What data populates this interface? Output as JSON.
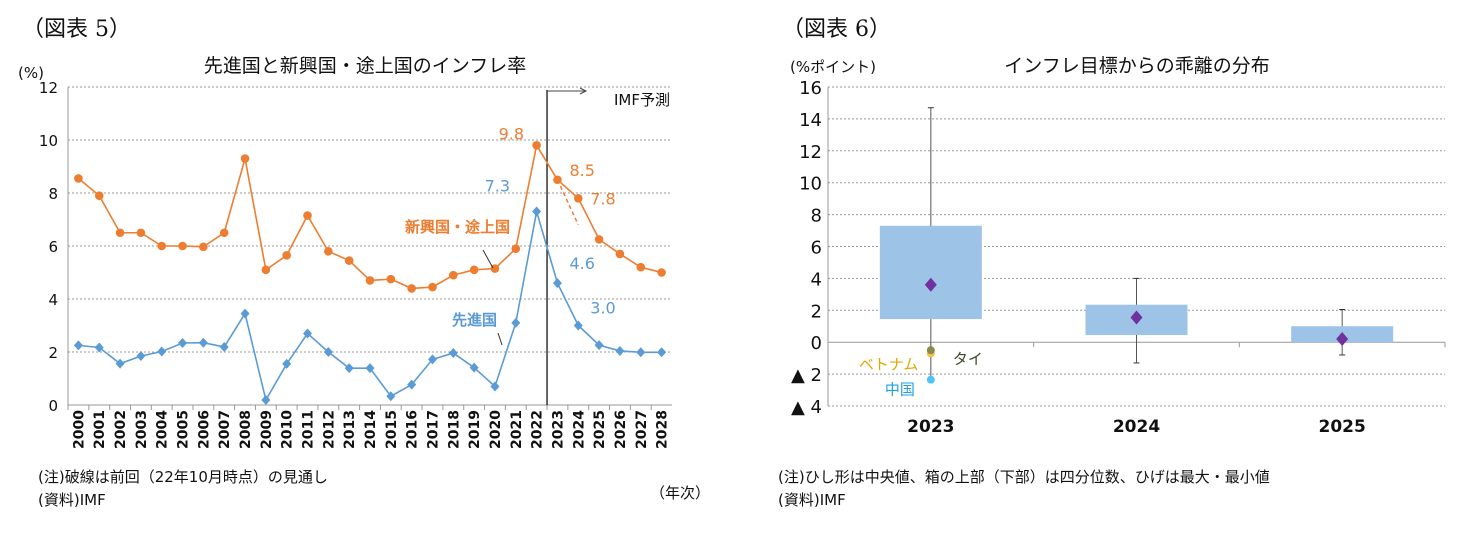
{
  "chart_data": [
    {
      "type": "line",
      "figure_label": "（図表 5）",
      "title": "先進国と新興国・途上国のインフレ率",
      "ylabel": "(%)",
      "xlabel": "（年次）",
      "ylim": [
        0,
        12
      ],
      "yticks": [
        "0",
        "2",
        "4",
        "6",
        "8",
        "10",
        "12"
      ],
      "grid": true,
      "categories": [
        "2000",
        "2001",
        "2002",
        "2003",
        "2004",
        "2005",
        "2006",
        "2007",
        "2008",
        "2009",
        "2010",
        "2011",
        "2012",
        "2013",
        "2014",
        "2015",
        "2016",
        "2017",
        "2018",
        "2019",
        "2020",
        "2021",
        "2022",
        "2023",
        "2024",
        "2025",
        "2026",
        "2027",
        "2028"
      ],
      "series": [
        {
          "name": "新興国・途上国",
          "color": "#ED7D31",
          "marker": "circle",
          "values": [
            8.55,
            7.9,
            6.5,
            6.5,
            6.0,
            6.0,
            5.97,
            6.5,
            9.3,
            5.1,
            5.65,
            7.15,
            5.8,
            5.45,
            4.7,
            4.75,
            4.4,
            4.45,
            4.9,
            5.1,
            5.15,
            5.9,
            9.8,
            8.5,
            7.8,
            6.25,
            5.7,
            5.2,
            5.0
          ]
        },
        {
          "name": "先進国",
          "color": "#5B9BD5",
          "marker": "diamond",
          "values": [
            2.25,
            2.17,
            1.56,
            1.85,
            2.02,
            2.34,
            2.35,
            2.19,
            3.45,
            0.19,
            1.55,
            2.7,
            2.0,
            1.39,
            1.39,
            0.33,
            0.77,
            1.72,
            1.96,
            1.41,
            0.7,
            3.1,
            7.3,
            4.6,
            3.0,
            2.26,
            2.04,
            1.99,
            1.99
          ]
        }
      ],
      "previous_forecast_dashed": {
        "color": "#ED7D31",
        "x": [
          "2023",
          "2024"
        ],
        "values": [
          8.5,
          6.8
        ]
      },
      "forecast_start": "2023",
      "forecast_label": "IMF予測",
      "data_labels": [
        {
          "series": 0,
          "x": "2022",
          "text": "9.8"
        },
        {
          "series": 0,
          "x": "2023",
          "text": "8.5"
        },
        {
          "series": 0,
          "x": "2024",
          "text": "7.8"
        },
        {
          "series": 1,
          "x": "2022",
          "text": "7.3"
        },
        {
          "series": 1,
          "x": "2023",
          "text": "4.6"
        },
        {
          "series": 1,
          "x": "2024",
          "text": "3.0"
        }
      ],
      "note": "(注)破線は前回（22年10月時点）の見通し",
      "source": "(資料)IMF"
    },
    {
      "type": "box",
      "figure_label": "（図表 6）",
      "title": "インフレ目標からの乖離の分布",
      "ylabel": "(%ポイント)",
      "ylim": [
        -4,
        16
      ],
      "yticks": [
        {
          "v": 16,
          "t": "16"
        },
        {
          "v": 14,
          "t": "14"
        },
        {
          "v": 12,
          "t": "12"
        },
        {
          "v": 10,
          "t": "10"
        },
        {
          "v": 8,
          "t": "8"
        },
        {
          "v": 6,
          "t": "6"
        },
        {
          "v": 4,
          "t": "4"
        },
        {
          "v": 2,
          "t": "2"
        },
        {
          "v": 0,
          "t": "0"
        },
        {
          "v": -2,
          "t": "▲ 2"
        },
        {
          "v": -4,
          "t": "▲ 4"
        }
      ],
      "grid": true,
      "box_color": "#9DC3E6",
      "median_color": "#7030A0",
      "categories": [
        "2023",
        "2024",
        "2025"
      ],
      "boxes": [
        {
          "min": -2.3,
          "q1": 1.45,
          "median": 3.6,
          "q3": 7.3,
          "max": 14.7
        },
        {
          "min": -1.3,
          "q1": 0.45,
          "median": 1.55,
          "q3": 2.35,
          "max": 4.0
        },
        {
          "min": -0.8,
          "q1": 0.0,
          "median": 0.2,
          "q3": 1.0,
          "max": 2.05
        }
      ],
      "points": [
        {
          "label": "ベトナム",
          "x": "2023",
          "value": -0.7,
          "color": "#F2C14E",
          "label_color": "#E0A800"
        },
        {
          "label": "タイ",
          "x": "2023",
          "value": -0.5,
          "color": "#8A8A4A",
          "label_color": "#3B4A2A"
        },
        {
          "label": "中国",
          "x": "2023",
          "value": -2.35,
          "color": "#4FC3F7",
          "label_color": "#1FA3E0"
        }
      ],
      "note": "(注)ひし形は中央値、箱の上部（下部）は四分位数、ひげは最大・最小値",
      "source": "(資料)IMF"
    }
  ]
}
